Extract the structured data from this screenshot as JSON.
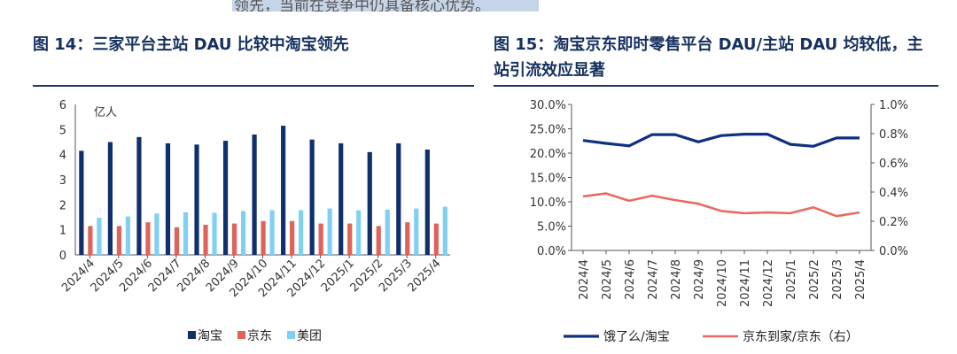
{
  "top_strip_text": "领先，当前在竞争中仍具备核心优势。",
  "colors": {
    "title": "#16305f",
    "rule": "#1f3864",
    "taobao_bar": "#10306d",
    "jd_bar": "#e0625a",
    "meituan_bar": "#7fd0f2",
    "ele_line": "#0e3180",
    "jddj_line": "#ea6a62"
  },
  "chart_data": [
    {
      "type": "bar",
      "title": "图 14：三家平台主站 DAU 比较中淘宝领先",
      "ylabel": "亿人",
      "ylim": [
        0,
        6
      ],
      "yticks": [
        "0",
        "1",
        "2",
        "3",
        "4",
        "5",
        "6"
      ],
      "categories": [
        "2024/4",
        "2024/5",
        "2024/6",
        "2024/7",
        "2024/8",
        "2024/9",
        "2024/10",
        "2024/11",
        "2024/12",
        "2025/1",
        "2025/2",
        "2025/3",
        "2025/4"
      ],
      "series": [
        {
          "name": "淘宝",
          "values": [
            4.15,
            4.5,
            4.7,
            4.45,
            4.4,
            4.55,
            4.8,
            5.15,
            4.6,
            4.45,
            4.1,
            4.45,
            4.2
          ]
        },
        {
          "name": "京东",
          "values": [
            1.15,
            1.15,
            1.3,
            1.1,
            1.2,
            1.25,
            1.35,
            1.35,
            1.25,
            1.25,
            1.15,
            1.3,
            1.25
          ]
        },
        {
          "name": "美团",
          "values": [
            1.48,
            1.53,
            1.65,
            1.7,
            1.68,
            1.75,
            1.78,
            1.78,
            1.85,
            1.78,
            1.8,
            1.85,
            1.92
          ]
        }
      ],
      "legend_position": "bottom"
    },
    {
      "type": "line",
      "title": "图 15：淘宝京东即时零售平台 DAU/主站 DAU 均较低，主站引流效应显著",
      "ylim_left": [
        0,
        30
      ],
      "yticks_left": [
        "0.0%",
        "5.0%",
        "10.0%",
        "15.0%",
        "20.0%",
        "25.0%",
        "30.0%"
      ],
      "ylim_right": [
        0,
        1.0
      ],
      "yticks_right": [
        "0.0%",
        "0.2%",
        "0.4%",
        "0.6%",
        "0.8%",
        "1.0%"
      ],
      "categories": [
        "2024/4",
        "2024/5",
        "2024/6",
        "2024/7",
        "2024/8",
        "2024/9",
        "2024/10",
        "2024/11",
        "2024/12",
        "2025/1",
        "2025/2",
        "2025/3",
        "2025/4"
      ],
      "series": [
        {
          "name": "饿了么/淘宝",
          "axis": "left",
          "values": [
            22.6,
            22.0,
            21.5,
            23.8,
            23.8,
            22.3,
            23.6,
            23.9,
            23.9,
            21.8,
            21.4,
            23.1,
            23.1
          ]
        },
        {
          "name": "京东到家/京东（右）",
          "axis": "right",
          "values": [
            0.37,
            0.39,
            0.34,
            0.375,
            0.345,
            0.32,
            0.27,
            0.255,
            0.26,
            0.255,
            0.295,
            0.235,
            0.26
          ]
        }
      ],
      "legend_position": "bottom"
    }
  ]
}
